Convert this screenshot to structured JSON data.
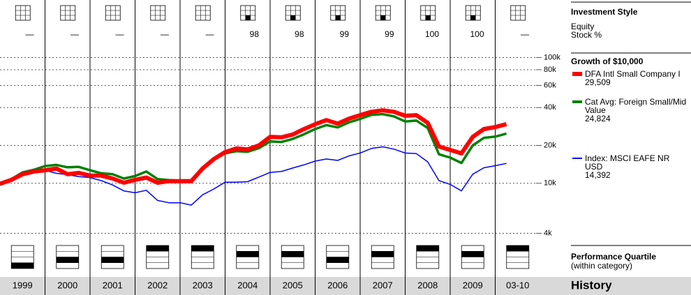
{
  "chart_data": {
    "type": "line",
    "title": "Growth of $10,000",
    "x": [
      1999,
      1999.25,
      1999.5,
      1999.75,
      2000,
      2000.25,
      2000.5,
      2000.75,
      2001,
      2001.25,
      2001.5,
      2001.75,
      2002,
      2002.25,
      2002.5,
      2002.75,
      2003,
      2003.25,
      2003.5,
      2003.75,
      2004,
      2004.25,
      2004.5,
      2004.75,
      2005,
      2005.25,
      2005.5,
      2005.75,
      2006,
      2006.25,
      2006.5,
      2006.75,
      2007,
      2007.25,
      2007.5,
      2007.75,
      2008,
      2008.25,
      2008.5,
      2008.75,
      2009,
      2009.25,
      2009.5,
      2009.75,
      2010,
      2010.25
    ],
    "xlim": [
      1999,
      2011
    ],
    "ylim": [
      3500,
      110000
    ],
    "log_scale": true,
    "grid": true,
    "yticks": [
      {
        "value": 4000,
        "label": "4k"
      },
      {
        "value": 10000,
        "label": "10k"
      },
      {
        "value": 20000,
        "label": "20k"
      },
      {
        "value": 40000,
        "label": "40k"
      },
      {
        "value": 60000,
        "label": "60k"
      },
      {
        "value": 80000,
        "label": "80k"
      },
      {
        "value": 100000,
        "label": "100k"
      }
    ],
    "series": [
      {
        "name": "DFA Intl Small Company I",
        "color": "#ff0000",
        "ending_value": {
          "value": 29509,
          "label": "29,509"
        },
        "values": [
          9900,
          10650,
          11800,
          12400,
          12700,
          13100,
          11800,
          12100,
          11500,
          11500,
          10900,
          10100,
          10650,
          11100,
          10100,
          10400,
          10400,
          10400,
          13100,
          15600,
          17700,
          18900,
          18600,
          20000,
          23400,
          23200,
          24400,
          26970,
          29500,
          31800,
          29800,
          32600,
          34800,
          37000,
          38000,
          37000,
          34400,
          34800,
          30200,
          19600,
          18400,
          17300,
          23400,
          27000,
          28000,
          29509
        ]
      },
      {
        "name": "Cat Avg: Foreign Small/Mid Value",
        "color": "#008000",
        "ending_value": {
          "value": 24824,
          "label": "24,824"
        },
        "values": [
          9700,
          10800,
          12200,
          12800,
          13700,
          14000,
          13400,
          13500,
          12700,
          12000,
          11800,
          10900,
          11400,
          12400,
          10800,
          10600,
          10500,
          10200,
          13200,
          15400,
          17300,
          18000,
          17800,
          19000,
          21500,
          21300,
          22500,
          24500,
          27000,
          29000,
          27800,
          30500,
          32500,
          35000,
          35500,
          34000,
          31000,
          31500,
          27500,
          17000,
          16000,
          14500,
          20000,
          23000,
          23500,
          24824
        ]
      },
      {
        "name": "Index: MSCI EAFE NR USD",
        "color": "#0000ff",
        "ending_value": {
          "value": 14392,
          "label": "14,392"
        },
        "values": [
          10000,
          10500,
          11500,
          12300,
          12700,
          12000,
          11700,
          11300,
          11100,
          10500,
          9700,
          8700,
          8400,
          8800,
          7300,
          7000,
          7000,
          6700,
          8100,
          9000,
          10200,
          10200,
          10300,
          11200,
          12200,
          12400,
          13200,
          14000,
          15000,
          15600,
          15200,
          16500,
          17400,
          18900,
          19500,
          18700,
          17400,
          17200,
          14800,
          10500,
          9800,
          8700,
          11800,
          13300,
          13800,
          14392
        ]
      }
    ]
  },
  "investment_style": {
    "title": "Investment Style",
    "labels": [
      "Equity",
      "Stock %"
    ],
    "stock_pct": [
      "—",
      "—",
      "—",
      "—",
      "—",
      98,
      98,
      99,
      99,
      100,
      100,
      "—"
    ],
    "style_box_filled": [
      false,
      false,
      false,
      false,
      false,
      true,
      true,
      true,
      true,
      true,
      true,
      false
    ]
  },
  "performance_quartile": {
    "title": "Performance Quartile",
    "subtitle": "(within category)",
    "quartiles": [
      4,
      3,
      3,
      1,
      1,
      2,
      2,
      3,
      2,
      1,
      2,
      1
    ]
  },
  "history": {
    "title": "History",
    "years": [
      "1999",
      "2000",
      "2001",
      "2002",
      "2003",
      "2004",
      "2005",
      "2006",
      "2007",
      "2008",
      "2009",
      "03-10"
    ]
  }
}
